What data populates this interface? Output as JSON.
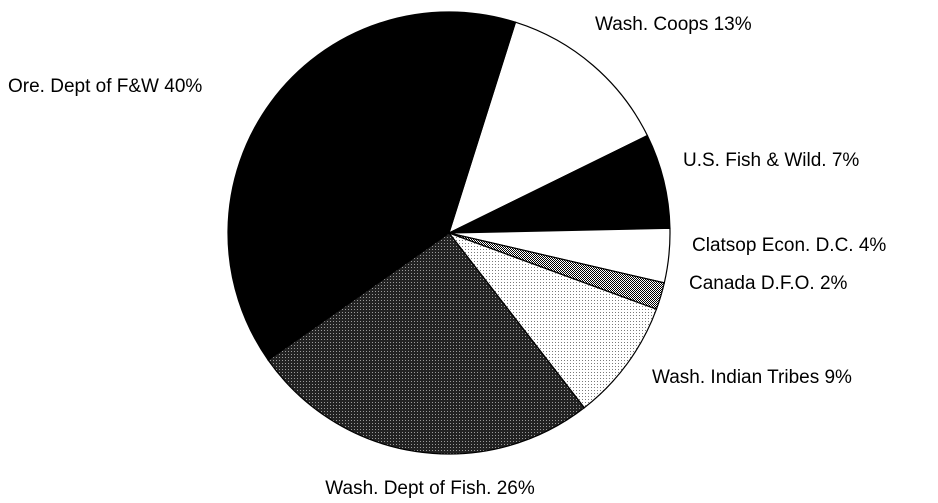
{
  "chart_data": {
    "type": "pie",
    "title": "",
    "slices": [
      {
        "label": "Wash. Coops",
        "percent_label": "13%",
        "value": 13,
        "fill": "#ffffff"
      },
      {
        "label": "U.S. Fish & Wild.",
        "percent_label": "7%",
        "value": 7,
        "fill": "#000000"
      },
      {
        "label": "Clatsop Econ. D.C.",
        "percent_label": "4%",
        "value": 4,
        "fill": "#ffffff"
      },
      {
        "label": "Canada D.F.O.",
        "percent_label": "2%",
        "value": 2,
        "fill": "#555555"
      },
      {
        "label": "Wash. Indian Tribes",
        "percent_label": "9%",
        "value": 9,
        "fill": "#e6e6e6"
      },
      {
        "label": "Wash. Dept of Fish.",
        "percent_label": "26%",
        "value": 26,
        "fill": "#333333"
      },
      {
        "label": "Ore. Dept of F&W",
        "percent_label": "40%",
        "value": 40,
        "fill": "#000000"
      }
    ]
  }
}
